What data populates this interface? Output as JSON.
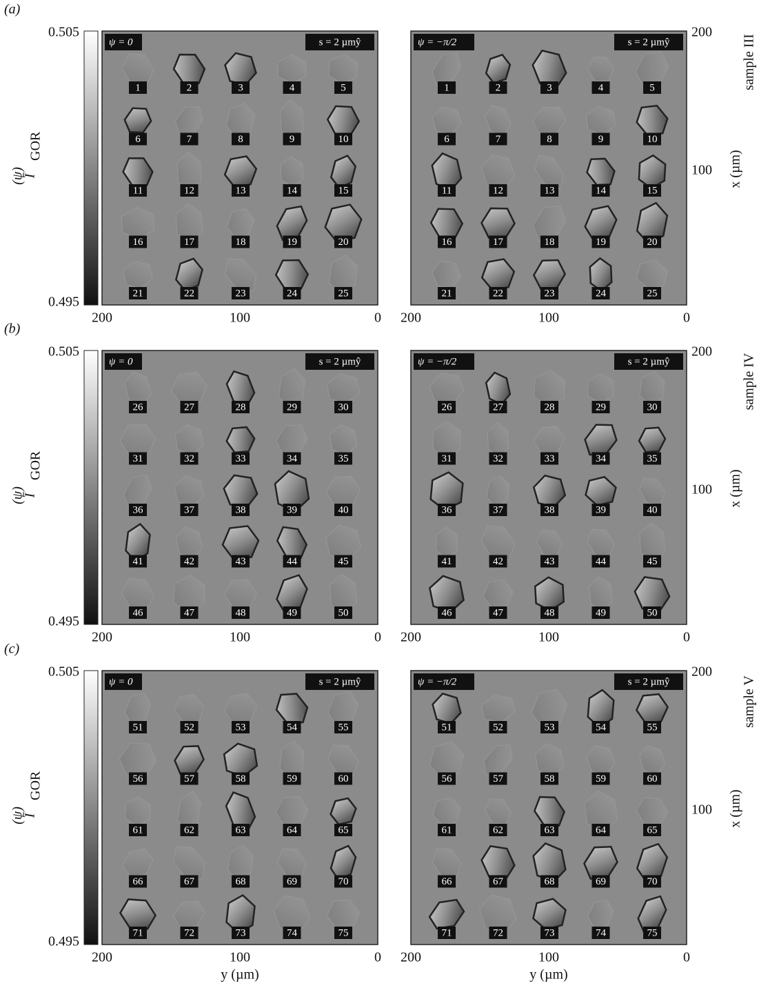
{
  "figure": {
    "rows": [
      {
        "label": "(a)",
        "sample": "sample III",
        "crystals": [
          1,
          2,
          3,
          4,
          5,
          6,
          7,
          8,
          9,
          10,
          11,
          12,
          13,
          14,
          15,
          16,
          17,
          18,
          19,
          20,
          21,
          22,
          23,
          24,
          25
        ]
      },
      {
        "label": "(b)",
        "sample": "sample IV",
        "crystals": [
          26,
          27,
          28,
          29,
          30,
          31,
          32,
          33,
          34,
          35,
          36,
          37,
          38,
          39,
          40,
          41,
          42,
          43,
          44,
          45,
          46,
          47,
          48,
          49,
          50
        ]
      },
      {
        "label": "(c)",
        "sample": "sample V",
        "crystals": [
          51,
          52,
          53,
          54,
          55,
          56,
          57,
          58,
          59,
          60,
          61,
          62,
          63,
          64,
          65,
          66,
          67,
          68,
          69,
          70,
          71,
          72,
          73,
          74,
          75
        ]
      }
    ],
    "colorbar": {
      "max": "0.505",
      "min": "0.495",
      "symbol": "Ī",
      "superscript": "(ψ)",
      "subscript": "GOR"
    },
    "panels": [
      {
        "psi": "ψ = 0",
        "scale": "s = 2 µmŷ"
      },
      {
        "psi": "ψ = −π/2",
        "scale": "s = 2 µmŷ"
      }
    ],
    "y_ticks": [
      "200",
      "100",
      "0"
    ],
    "x_ticks": [
      "200",
      "100"
    ],
    "x_axis_label": "x (µm)",
    "y_axis_label": "y (µm)"
  }
}
